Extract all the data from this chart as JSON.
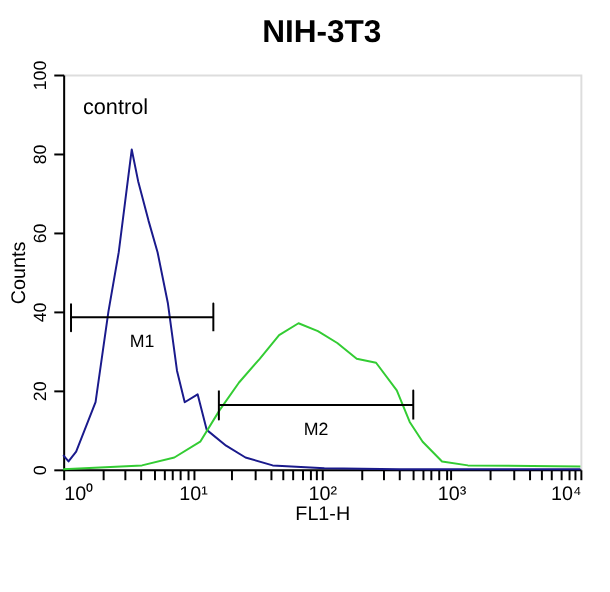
{
  "chart_data": {
    "type": "line",
    "title": "NIH-3T3",
    "xlabel": "FL1-H",
    "ylabel": "Counts",
    "log": "x",
    "xlim": [
      1,
      10000
    ],
    "ylim": [
      0,
      100
    ],
    "yticks": [
      0,
      20,
      40,
      60,
      80,
      100
    ],
    "xticks": [
      {
        "value": 1,
        "label": "10⁰"
      },
      {
        "value": 2,
        "label": null
      },
      {
        "value": 3,
        "label": null
      },
      {
        "value": 4,
        "label": null
      },
      {
        "value": 5,
        "label": null
      },
      {
        "value": 6,
        "label": null
      },
      {
        "value": 7,
        "label": null
      },
      {
        "value": 8,
        "label": null
      },
      {
        "value": 9,
        "label": null
      },
      {
        "value": 10,
        "label": "10¹"
      },
      {
        "value": 20,
        "label": null
      },
      {
        "value": 30,
        "label": null
      },
      {
        "value": 40,
        "label": null
      },
      {
        "value": 50,
        "label": null
      },
      {
        "value": 60,
        "label": null
      },
      {
        "value": 70,
        "label": null
      },
      {
        "value": 80,
        "label": null
      },
      {
        "value": 90,
        "label": null
      },
      {
        "value": 100,
        "label": "10²"
      },
      {
        "value": 200,
        "label": null
      },
      {
        "value": 300,
        "label": null
      },
      {
        "value": 400,
        "label": null
      },
      {
        "value": 500,
        "label": null
      },
      {
        "value": 600,
        "label": null
      },
      {
        "value": 700,
        "label": null
      },
      {
        "value": 800,
        "label": null
      },
      {
        "value": 900,
        "label": null
      },
      {
        "value": 1000,
        "label": "10³"
      },
      {
        "value": 2000,
        "label": null
      },
      {
        "value": 3000,
        "label": null
      },
      {
        "value": 4000,
        "label": null
      },
      {
        "value": 5000,
        "label": null
      },
      {
        "value": 6000,
        "label": null
      },
      {
        "value": 7000,
        "label": null
      },
      {
        "value": 8000,
        "label": null
      },
      {
        "value": 9000,
        "label": null
      },
      {
        "value": 10000,
        "label": "10⁴"
      }
    ],
    "grid": false,
    "legend": false,
    "marker": "none",
    "line_style": "solid",
    "series": [
      {
        "color": "#1a1a8c",
        "x": [
          1,
          1.1,
          1.26,
          1.78,
          2.24,
          2.69,
          3.02,
          3.39,
          3.8,
          4.57,
          5.37,
          6.46,
          7.59,
          8.71,
          10.96,
          12.88,
          18.2,
          25.7,
          41.7,
          104.7,
          398,
          10000
        ],
        "values": [
          3.6,
          2,
          4.5,
          17,
          40,
          55,
          68,
          81,
          73,
          63,
          55,
          42,
          25,
          17,
          19,
          10,
          6,
          3,
          1,
          0.3,
          0,
          0
        ]
      },
      {
        "color": "#33cc33",
        "x": [
          1,
          4.07,
          7.24,
          11.48,
          16.22,
          22.91,
          33.11,
          46.77,
          66.07,
          93.33,
          131.8,
          186.2,
          263,
          380.2,
          478.6,
          602.6,
          851.1,
          1349,
          10000
        ],
        "values": [
          0,
          1,
          3,
          7,
          15,
          22,
          28,
          34,
          37,
          35,
          32,
          28,
          27,
          20,
          12,
          7,
          2,
          1,
          0.7
        ]
      },
      {
        "type": "line",
        "color": "#000000",
        "x": [
          1.15,
          1.15,
          1.15,
          14.5,
          14.5,
          14.5
        ],
        "values": [
          42,
          35,
          38.5,
          38.5,
          42,
          35
        ]
      },
      {
        "type": "line",
        "color": "#000000",
        "x": [
          16,
          16,
          16,
          510,
          510,
          510
        ],
        "values": [
          20,
          12.6,
          16.3,
          16.3,
          20,
          12.6
        ]
      }
    ],
    "annotations": [
      "control",
      {
        "text": "M1",
        "x": 4.08,
        "y": 38.5
      },
      {
        "text": "M2",
        "x": 90.3,
        "y": 16.3
      }
    ]
  }
}
